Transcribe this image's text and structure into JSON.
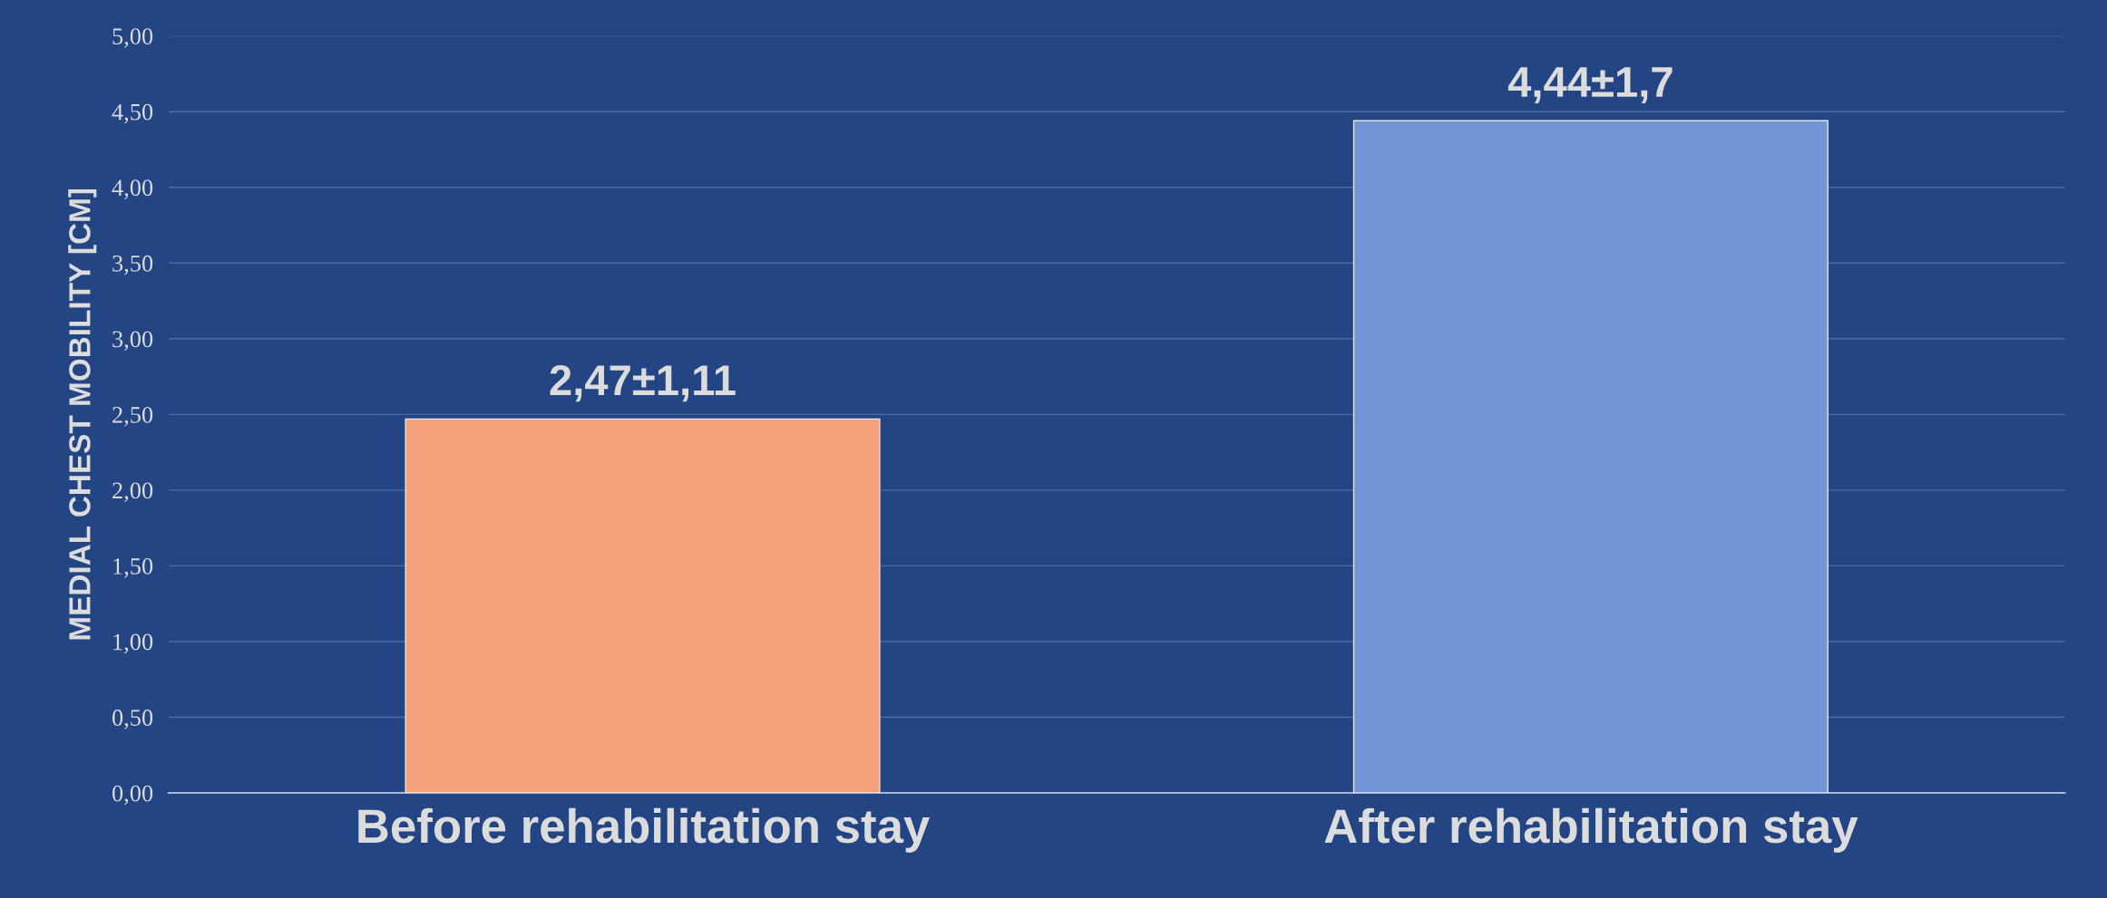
{
  "chart_data": {
    "type": "bar",
    "ylabel": "MEDIAL CHEST MOBILITY [CM]",
    "categories": [
      "Before rehabilitation stay",
      "After rehabilitation stay"
    ],
    "values": [
      2.47,
      4.44
    ],
    "colors": [
      "#f4a07a",
      "#7094d4"
    ],
    "value_labels": [
      "2,47±1,11",
      "4,44±1,7"
    ],
    "ylim": [
      0,
      5
    ],
    "yticks": [
      {
        "value": 0,
        "label": "0,00"
      },
      {
        "value": 0.5,
        "label": "0,50"
      },
      {
        "value": 1,
        "label": "1,00"
      },
      {
        "value": 1.5,
        "label": "1,50"
      },
      {
        "value": 2,
        "label": "2,00"
      },
      {
        "value": 2.5,
        "label": "2,50"
      },
      {
        "value": 3,
        "label": "3,00"
      },
      {
        "value": 3.5,
        "label": "3,50"
      },
      {
        "value": 4,
        "label": "4,00"
      },
      {
        "value": 4.5,
        "label": "4,50"
      },
      {
        "value": 5,
        "label": "5,00"
      }
    ],
    "grid": "y",
    "legend": false
  }
}
